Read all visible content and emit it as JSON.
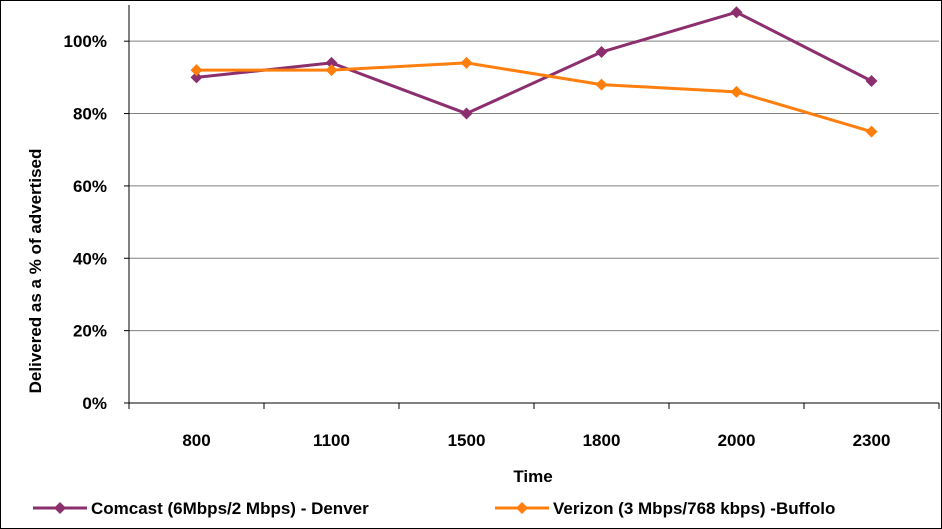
{
  "chart_data": {
    "type": "line",
    "title": "",
    "xlabel": "Time",
    "ylabel": "Delivered as a % of advertised",
    "categories": [
      "800",
      "1100",
      "1500",
      "1800",
      "2000",
      "2300"
    ],
    "ylim": [
      0,
      1.1
    ],
    "yticks": [
      0,
      0.2,
      0.4,
      0.6,
      0.8,
      1.0
    ],
    "ytick_labels": [
      "0%",
      "20%",
      "40%",
      "60%",
      "80%",
      "100%"
    ],
    "grid": "horizontal",
    "legend_position": "bottom",
    "series": [
      {
        "name": "Comcast (6Mbps/2 Mbps) - Denver",
        "color": "#8B2F6E",
        "marker": "diamond",
        "values": [
          0.9,
          0.94,
          0.8,
          0.97,
          1.08,
          0.89
        ]
      },
      {
        "name": "Verizon (3 Mbps/768 kbps) -Buffolo",
        "color": "#FF7F0E",
        "marker": "diamond",
        "values": [
          0.92,
          0.92,
          0.94,
          0.88,
          0.86,
          0.75
        ]
      }
    ]
  }
}
